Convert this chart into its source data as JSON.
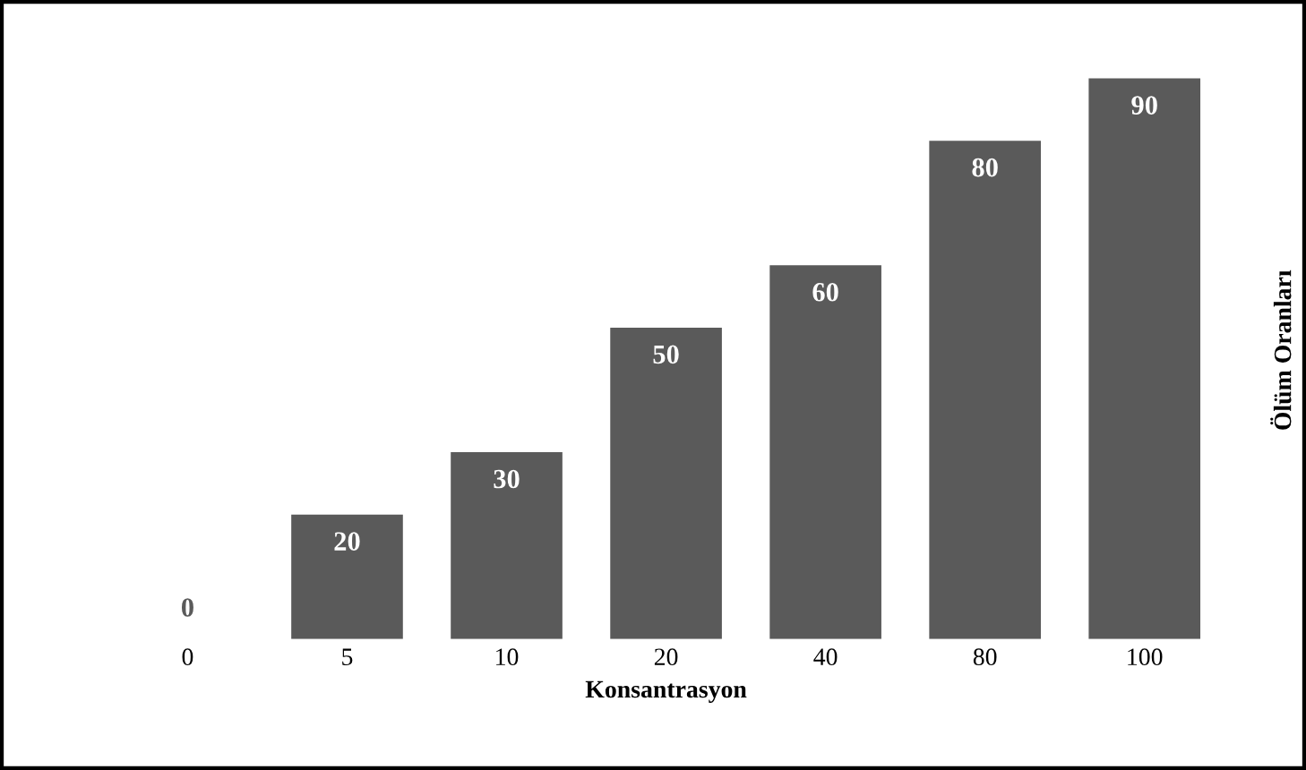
{
  "chart_data": {
    "type": "bar",
    "categories": [
      "0",
      "5",
      "10",
      "20",
      "40",
      "80",
      "100"
    ],
    "values": [
      0,
      20,
      30,
      50,
      60,
      80,
      90
    ],
    "color": "#5a5a5a",
    "xlabel": "Konsantrasyon",
    "ylabel": "Ölüm Oranları",
    "data_labels": true,
    "tick_labels": "x",
    "grid": false,
    "legend": false
  }
}
